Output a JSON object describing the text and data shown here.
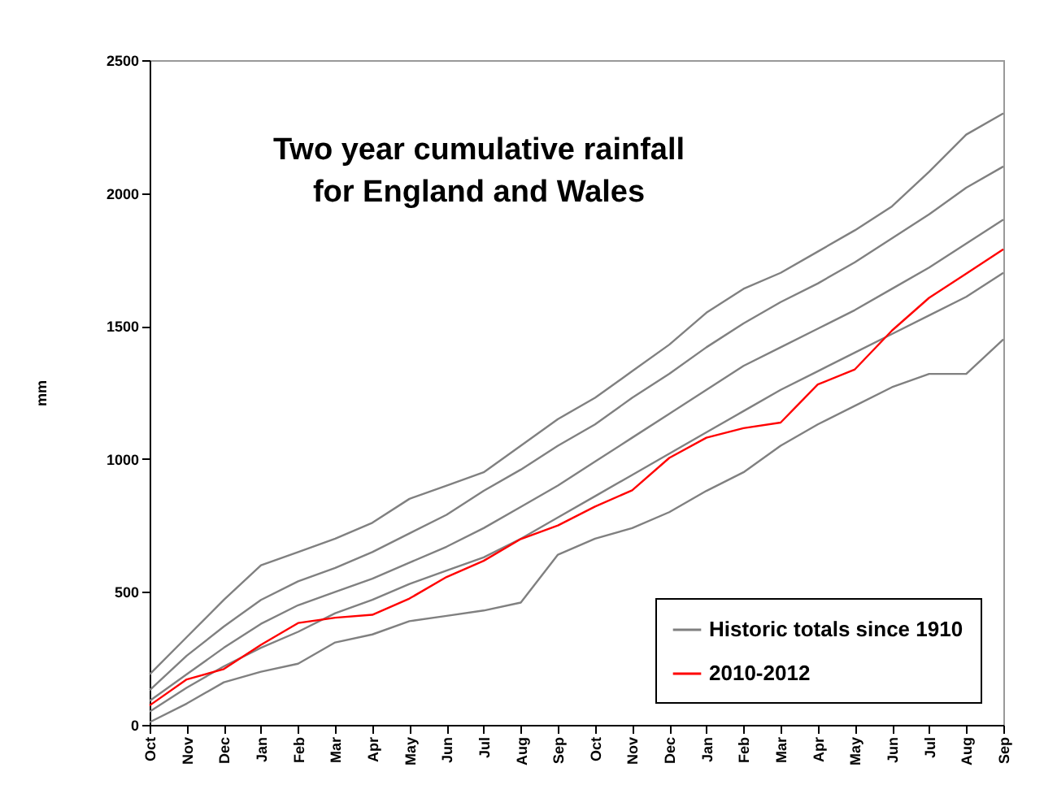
{
  "chart_data": {
    "type": "line",
    "title": "Two year cumulative rainfall\nfor England and Wales",
    "ylabel": "mm",
    "categories": [
      "Oct",
      "Nov",
      "Dec",
      "Jan",
      "Feb",
      "Mar",
      "Apr",
      "May",
      "Jun",
      "Jul",
      "Aug",
      "Sep",
      "Oct",
      "Nov",
      "Dec",
      "Jan",
      "Feb",
      "Mar",
      "Apr",
      "May",
      "Jun",
      "Jul",
      "Aug",
      "Sep"
    ],
    "ylim": [
      0,
      2500
    ],
    "yticks": [
      0,
      500,
      1000,
      1500,
      2000,
      2500
    ],
    "grid": false,
    "legend": "bottom right",
    "marker": "none",
    "line_style": "solid",
    "series": [
      {
        "name": "Historic totals since 1910",
        "color": "#808080",
        "values": [
          190,
          330,
          470,
          600,
          650,
          700,
          760,
          850,
          900,
          950,
          1050,
          1150,
          1230,
          1330,
          1430,
          1550,
          1640,
          1700,
          1780,
          1860,
          1950,
          2080,
          2220,
          2300
        ]
      },
      {
        "color": "#808080",
        "values": [
          130,
          260,
          370,
          470,
          540,
          590,
          650,
          720,
          790,
          880,
          960,
          1050,
          1130,
          1230,
          1320,
          1420,
          1510,
          1590,
          1660,
          1740,
          1830,
          1920,
          2020,
          2100
        ]
      },
      {
        "color": "#808080",
        "values": [
          90,
          190,
          290,
          380,
          450,
          500,
          550,
          610,
          670,
          740,
          820,
          900,
          990,
          1080,
          1170,
          1260,
          1350,
          1420,
          1490,
          1560,
          1640,
          1720,
          1810,
          1900
        ]
      },
      {
        "color": "#808080",
        "values": [
          50,
          140,
          220,
          290,
          350,
          420,
          470,
          530,
          580,
          630,
          700,
          780,
          860,
          940,
          1020,
          1100,
          1180,
          1260,
          1330,
          1400,
          1470,
          1540,
          1610,
          1700
        ]
      },
      {
        "color": "#808080",
        "values": [
          10,
          80,
          160,
          200,
          230,
          310,
          340,
          390,
          410,
          430,
          460,
          640,
          700,
          740,
          800,
          880,
          950,
          1050,
          1130,
          1200,
          1270,
          1320,
          1320,
          1450
        ]
      },
      {
        "name": "2010-2012",
        "color": "#ff0000",
        "values": [
          73,
          171,
          210,
          301,
          383,
          403,
          414,
          475,
          556,
          617,
          699,
          750,
          821,
          882,
          1004,
          1080,
          1116,
          1137,
          1280,
          1337,
          1483,
          1606,
          1697,
          1789
        ]
      }
    ]
  }
}
